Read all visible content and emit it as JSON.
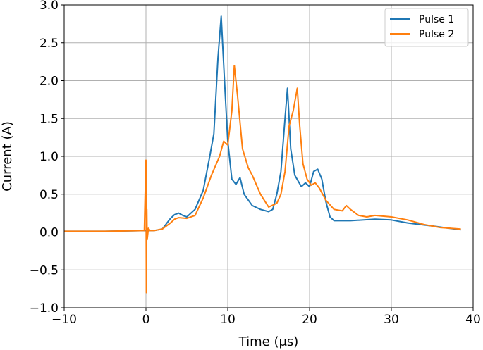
{
  "chart_data": {
    "type": "line",
    "title": "",
    "xlabel": "Time (μs)",
    "ylabel": "Current (A)",
    "xlim": [
      -10,
      40
    ],
    "ylim": [
      -1.0,
      3.0
    ],
    "xticks": [
      -10,
      0,
      10,
      20,
      30,
      40
    ],
    "xtick_labels": [
      "−10",
      "0",
      "10",
      "20",
      "30",
      "40"
    ],
    "yticks": [
      -1.0,
      -0.5,
      0.0,
      0.5,
      1.0,
      1.5,
      2.0,
      2.5,
      3.0
    ],
    "ytick_labels": [
      "−1.0",
      "−0.5",
      "0.0",
      "0.5",
      "1.0",
      "1.5",
      "2.0",
      "2.5",
      "3.0"
    ],
    "grid": true,
    "legend_position": "top-right",
    "series": [
      {
        "name": "Pulse 1",
        "color": "#1f77b4",
        "x": [
          -10,
          -5,
          0,
          0.1,
          0.2,
          0.4,
          1,
          2,
          3,
          3.5,
          4,
          4.5,
          5,
          6,
          7,
          7.8,
          8.3,
          8.8,
          9.2,
          9.6,
          10,
          10.5,
          11,
          11.5,
          12,
          13,
          14,
          15,
          15.5,
          16,
          16.5,
          17,
          17.3,
          17.7,
          18.2,
          19,
          19.5,
          20,
          20.5,
          21,
          21.5,
          22,
          22.5,
          23,
          25,
          28,
          30,
          32,
          35,
          38.5
        ],
        "y": [
          0.01,
          0.01,
          0.02,
          0.01,
          0.0,
          0.02,
          0.02,
          0.04,
          0.18,
          0.23,
          0.25,
          0.22,
          0.2,
          0.3,
          0.55,
          1.0,
          1.3,
          2.3,
          2.85,
          2.0,
          1.2,
          0.7,
          0.63,
          0.72,
          0.5,
          0.35,
          0.3,
          0.27,
          0.3,
          0.5,
          0.8,
          1.5,
          1.9,
          1.1,
          0.75,
          0.6,
          0.65,
          0.6,
          0.8,
          0.83,
          0.7,
          0.4,
          0.2,
          0.15,
          0.15,
          0.17,
          0.16,
          0.12,
          0.08,
          0.03
        ]
      },
      {
        "name": "Pulse 2",
        "color": "#ff7f0e",
        "x": [
          -10,
          -5,
          -0.2,
          0,
          0.05,
          0.1,
          0.15,
          0.3,
          0.5,
          1,
          2,
          3,
          3.5,
          4,
          5,
          6,
          7,
          8,
          9,
          9.5,
          10,
          10.5,
          10.8,
          11.2,
          11.8,
          12.5,
          13,
          14,
          15,
          16,
          16.5,
          17,
          17.5,
          18,
          18.5,
          18.8,
          19.2,
          19.7,
          20.2,
          20.7,
          21.2,
          22,
          23,
          24,
          24.5,
          25,
          26,
          27,
          28,
          30,
          32,
          34,
          36,
          38.5
        ],
        "y": [
          0.01,
          0.01,
          0.02,
          0.95,
          -0.8,
          0.3,
          -0.1,
          0.05,
          0.02,
          0.02,
          0.04,
          0.12,
          0.17,
          0.19,
          0.18,
          0.22,
          0.45,
          0.75,
          1.0,
          1.2,
          1.15,
          1.6,
          2.2,
          1.8,
          1.1,
          0.85,
          0.75,
          0.5,
          0.33,
          0.38,
          0.5,
          0.8,
          1.4,
          1.6,
          1.9,
          1.4,
          0.9,
          0.7,
          0.62,
          0.65,
          0.58,
          0.42,
          0.3,
          0.28,
          0.35,
          0.3,
          0.22,
          0.2,
          0.22,
          0.2,
          0.16,
          0.1,
          0.06,
          0.04
        ]
      }
    ]
  }
}
